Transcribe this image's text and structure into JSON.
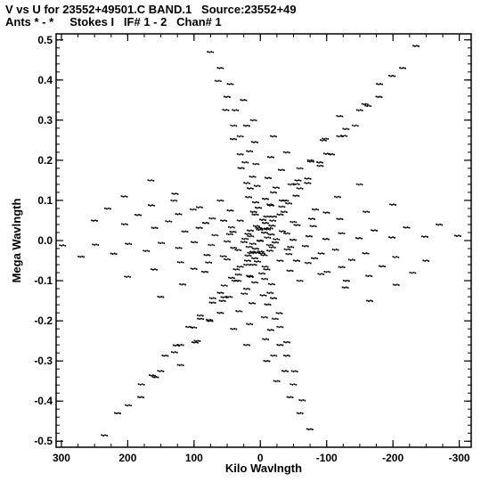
{
  "header": {
    "title_line1": "V vs U for 23552+49501.C BAND.1   Source:23552+49",
    "title_line2": "Ants * - *     Stokes I   IF# 1 - 2   Chan# 1"
  },
  "chart_data": {
    "type": "scatter",
    "title": "V vs U for 23552+49501.C BAND.1   Source:23552+49",
    "subtitle": "Ants * - *     Stokes I   IF# 1 - 2   Chan# 1",
    "xlabel": "Kilo Wavlngth",
    "ylabel": "Mega Wavlngth",
    "x_unit_scale": 1000,
    "xlim": [
      308,
      -318
    ],
    "ylim": [
      -0.515,
      0.515
    ],
    "x_ticks": [
      300,
      200,
      100,
      0,
      -100,
      -200,
      -300
    ],
    "x_tick_labels": [
      "300",
      "200",
      "100",
      "0",
      "-100",
      "-200",
      "-300"
    ],
    "y_ticks": [
      0.5,
      0.4,
      0.3,
      0.2,
      0.1,
      0.0,
      -0.1,
      -0.2,
      -0.3,
      -0.4,
      -0.5
    ],
    "y_tick_labels": [
      "0.5",
      "0.4",
      "0.3",
      "0.2",
      "0.1",
      "0.0",
      "-0.1",
      "-0.2",
      "-0.3",
      "-0.4",
      "-0.5"
    ],
    "grid": false,
    "marker_color": "#000000",
    "tracks": [
      {
        "start": [
          298,
          -0.012
        ],
        "end": [
          -298,
          0.012
        ],
        "n": 13
      },
      {
        "start": [
          270,
          -0.04
        ],
        "end": [
          -270,
          0.04
        ],
        "n": 12
      },
      {
        "start": [
          250,
          0.05
        ],
        "end": [
          -250,
          -0.05
        ],
        "n": 12
      },
      {
        "start": [
          230,
          0.08
        ],
        "end": [
          -230,
          -0.08
        ],
        "n": 11
      },
      {
        "start": [
          205,
          0.11
        ],
        "end": [
          -205,
          -0.11
        ],
        "n": 11
      },
      {
        "start": [
          200,
          -0.09
        ],
        "end": [
          -200,
          0.09
        ],
        "n": 11
      },
      {
        "start": [
          165,
          0.15
        ],
        "end": [
          -165,
          -0.15
        ],
        "n": 10
      },
      {
        "start": [
          150,
          -0.14
        ],
        "end": [
          -150,
          0.14
        ],
        "n": 10
      },
      {
        "start": [
          130,
          0.1
        ],
        "end": [
          -130,
          -0.1
        ],
        "n": 10
      },
      {
        "start": [
          100,
          -0.07
        ],
        "end": [
          -100,
          0.07
        ],
        "n": 10
      },
      {
        "start": [
          60,
          0.1
        ],
        "end": [
          -60,
          -0.1
        ],
        "n": 9
      },
      {
        "start": [
          -20,
          0.12
        ],
        "end": [
          20,
          -0.12
        ],
        "n": 9
      },
      {
        "start": [
          235,
          -0.485
        ],
        "end": [
          -235,
          0.485
        ],
        "n": 14
      },
      {
        "start": [
          215,
          -0.43
        ],
        "end": [
          -215,
          0.43
        ],
        "n": 13
      },
      {
        "start": [
          180,
          -0.39
        ],
        "end": [
          -180,
          0.39
        ],
        "n": 13
      },
      {
        "start": [
          158,
          -0.34
        ],
        "end": [
          -158,
          0.34
        ],
        "n": 12
      },
      {
        "start": [
          120,
          -0.31
        ],
        "end": [
          -120,
          0.31
        ],
        "n": 12
      },
      {
        "start": [
          95,
          -0.25
        ],
        "end": [
          -95,
          0.25
        ],
        "n": 11
      },
      {
        "start": [
          -75,
          -0.47
        ],
        "end": [
          75,
          0.47
        ],
        "n": 14
      },
      {
        "start": [
          -60,
          -0.43
        ],
        "end": [
          60,
          0.43
        ],
        "n": 13
      },
      {
        "start": [
          -45,
          -0.39
        ],
        "end": [
          45,
          0.39
        ],
        "n": 13
      },
      {
        "start": [
          -25,
          -0.35
        ],
        "end": [
          25,
          0.35
        ],
        "n": 12
      },
      {
        "start": [
          -10,
          -0.3
        ],
        "end": [
          10,
          0.3
        ],
        "n": 12
      },
      {
        "start": [
          20,
          -0.26
        ],
        "end": [
          -20,
          0.26
        ],
        "n": 11
      },
      {
        "start": [
          40,
          -0.22
        ],
        "end": [
          -40,
          0.22
        ],
        "n": 11
      },
      {
        "start": [
          60,
          -0.18
        ],
        "end": [
          -60,
          0.18
        ],
        "n": 10
      }
    ]
  }
}
